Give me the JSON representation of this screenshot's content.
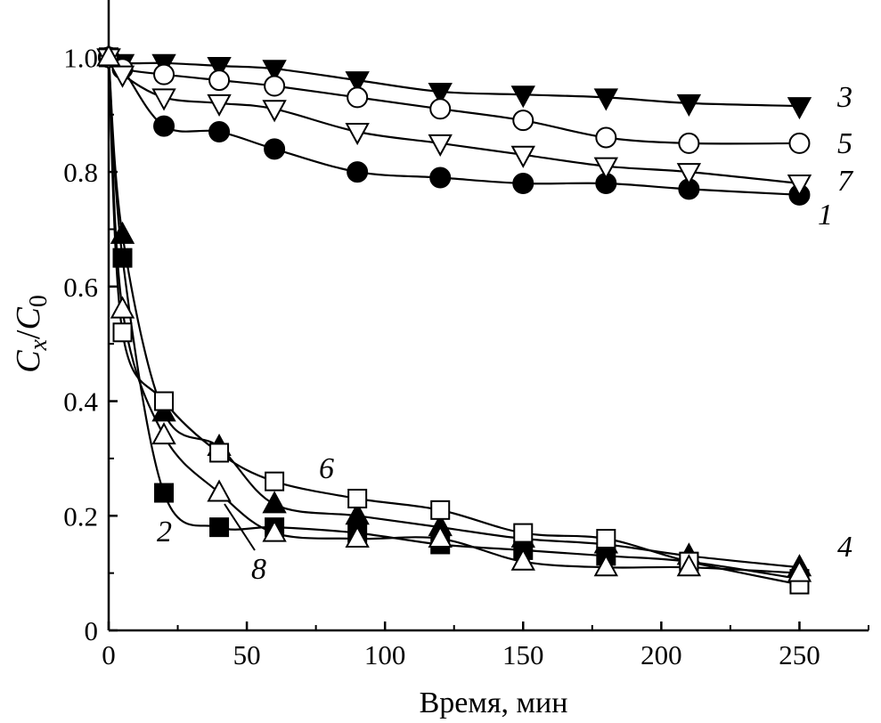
{
  "chart_data": {
    "type": "line",
    "title": "",
    "xlabel": "Время, мин",
    "ylabel": {
      "C": "C",
      "x": "x",
      "slash": "/",
      "zero": "0"
    },
    "xlim": [
      0,
      275
    ],
    "ylim": [
      0,
      1.1
    ],
    "xticks": [
      0,
      50,
      100,
      150,
      200,
      250
    ],
    "xtick_labels": [
      "0",
      "50",
      "100",
      "150",
      "200",
      "250"
    ],
    "yticks": [
      0,
      0.2,
      0.4,
      0.6,
      0.8,
      1.0
    ],
    "ytick_labels": [
      "0",
      "0.2",
      "0.4",
      "0.6",
      "0.8",
      "1.0"
    ],
    "grid": false,
    "series": [
      {
        "name": "1",
        "marker": "circle",
        "fill": "filled",
        "x": [
          0,
          5,
          20,
          40,
          60,
          90,
          120,
          150,
          180,
          210,
          250
        ],
        "y": [
          1.0,
          0.98,
          0.88,
          0.87,
          0.84,
          0.8,
          0.79,
          0.78,
          0.78,
          0.77,
          0.76
        ]
      },
      {
        "name": "2",
        "marker": "square",
        "fill": "filled",
        "x": [
          0,
          5,
          20,
          40,
          60,
          90,
          120,
          150,
          180,
          210,
          250
        ],
        "y": [
          1.0,
          0.65,
          0.24,
          0.18,
          0.18,
          0.17,
          0.15,
          0.14,
          0.13,
          0.12,
          0.09
        ]
      },
      {
        "name": "3",
        "marker": "triangle-down",
        "fill": "filled",
        "x": [
          0,
          5,
          20,
          40,
          60,
          90,
          120,
          150,
          180,
          210,
          250
        ],
        "y": [
          1.0,
          0.99,
          0.99,
          0.985,
          0.98,
          0.96,
          0.94,
          0.935,
          0.93,
          0.92,
          0.915
        ]
      },
      {
        "name": "4",
        "marker": "triangle-up",
        "fill": "filled",
        "x": [
          0,
          5,
          20,
          40,
          60,
          90,
          120,
          150,
          180,
          210,
          250
        ],
        "y": [
          1.0,
          0.69,
          0.38,
          0.32,
          0.22,
          0.2,
          0.18,
          0.16,
          0.15,
          0.13,
          0.11
        ]
      },
      {
        "name": "5",
        "marker": "circle",
        "fill": "open",
        "x": [
          0,
          5,
          20,
          40,
          60,
          90,
          120,
          150,
          180,
          210,
          250
        ],
        "y": [
          1.0,
          0.98,
          0.97,
          0.96,
          0.95,
          0.93,
          0.91,
          0.89,
          0.86,
          0.85,
          0.85
        ]
      },
      {
        "name": "6",
        "marker": "square",
        "fill": "open",
        "x": [
          0,
          5,
          20,
          40,
          60,
          90,
          120,
          150,
          180,
          210,
          250
        ],
        "y": [
          1.0,
          0.52,
          0.4,
          0.31,
          0.26,
          0.23,
          0.21,
          0.17,
          0.16,
          0.12,
          0.08
        ]
      },
      {
        "name": "7",
        "marker": "triangle-down",
        "fill": "open",
        "x": [
          0,
          5,
          20,
          40,
          60,
          90,
          120,
          150,
          180,
          210,
          250
        ],
        "y": [
          1.0,
          0.97,
          0.93,
          0.92,
          0.91,
          0.87,
          0.85,
          0.83,
          0.81,
          0.8,
          0.78
        ]
      },
      {
        "name": "8",
        "marker": "triangle-up",
        "fill": "open",
        "x": [
          0,
          5,
          20,
          40,
          60,
          90,
          120,
          150,
          180,
          210,
          250
        ],
        "y": [
          1.0,
          0.56,
          0.34,
          0.24,
          0.17,
          0.16,
          0.16,
          0.12,
          0.11,
          0.11,
          0.1
        ]
      }
    ],
    "annotations": [
      {
        "text": "3",
        "series": "3"
      },
      {
        "text": "5",
        "series": "5"
      },
      {
        "text": "7",
        "series": "7"
      },
      {
        "text": "1",
        "series": "1"
      },
      {
        "text": "4",
        "series": "4"
      },
      {
        "text": "6",
        "series": "6"
      },
      {
        "text": "2",
        "series": "2"
      },
      {
        "text": "8",
        "series": "8"
      }
    ]
  }
}
